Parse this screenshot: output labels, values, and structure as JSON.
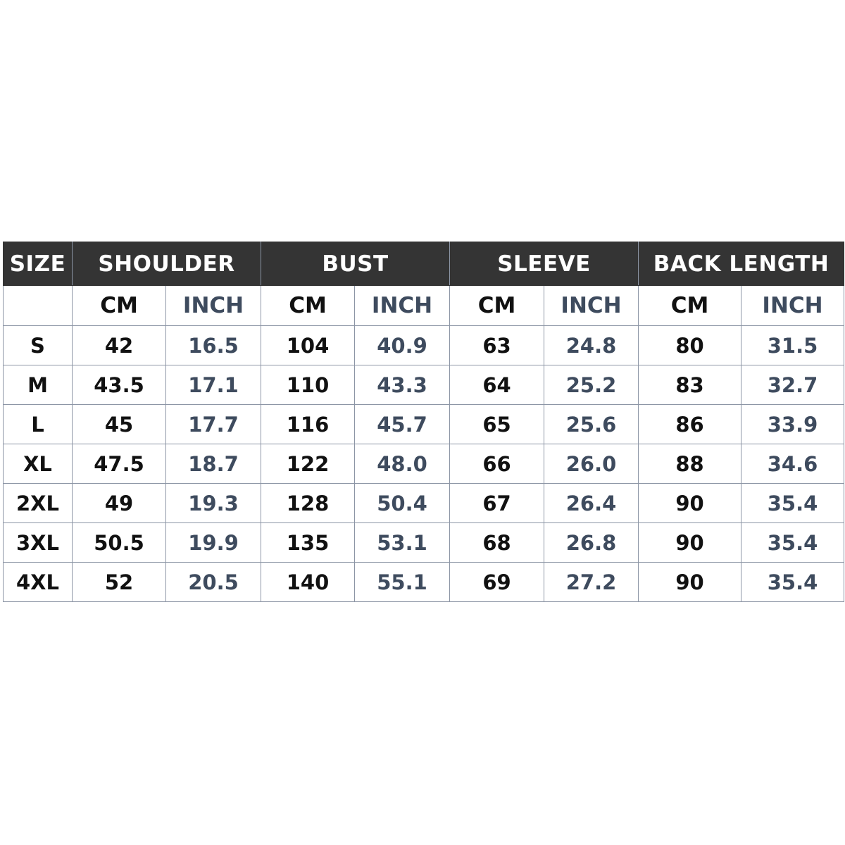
{
  "headers": [
    "SIZE",
    "SHOULDER",
    "BUST",
    "SLEEVE",
    "BACK LENGTH"
  ],
  "units": {
    "cm": "CM",
    "inch": "INCH"
  },
  "colors": {
    "header_bg": "#343434",
    "header_text": "#ffffff",
    "cm_text": "#111111",
    "inch_text": "#3e4b5e",
    "border": "#8c95a5"
  },
  "rows": [
    {
      "size": "S",
      "values": [
        "42",
        "16.5",
        "104",
        "40.9",
        "63",
        "24.8",
        "80",
        "31.5"
      ]
    },
    {
      "size": "M",
      "values": [
        "43.5",
        "17.1",
        "110",
        "43.3",
        "64",
        "25.2",
        "83",
        "32.7"
      ]
    },
    {
      "size": "L",
      "values": [
        "45",
        "17.7",
        "116",
        "45.7",
        "65",
        "25.6",
        "86",
        "33.9"
      ]
    },
    {
      "size": "XL",
      "values": [
        "47.5",
        "18.7",
        "122",
        "48.0",
        "66",
        "26.0",
        "88",
        "34.6"
      ]
    },
    {
      "size": "2XL",
      "values": [
        "49",
        "19.3",
        "128",
        "50.4",
        "67",
        "26.4",
        "90",
        "35.4"
      ]
    },
    {
      "size": "3XL",
      "values": [
        "50.5",
        "19.9",
        "135",
        "53.1",
        "68",
        "26.8",
        "90",
        "35.4"
      ]
    },
    {
      "size": "4XL",
      "values": [
        "52",
        "20.5",
        "140",
        "55.1",
        "69",
        "27.2",
        "90",
        "35.4"
      ]
    }
  ]
}
